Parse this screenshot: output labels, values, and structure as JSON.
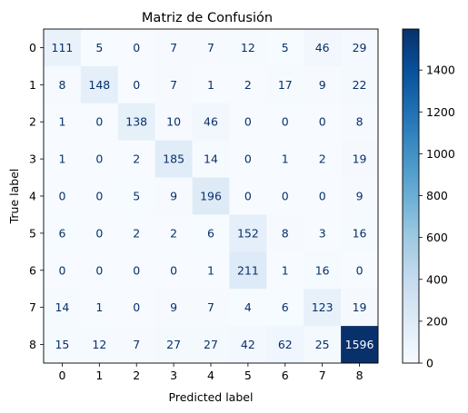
{
  "chart_data": {
    "type": "heatmap",
    "title": "Matriz de Confusión",
    "xlabel": "Predicted label",
    "ylabel": "True label",
    "x_ticks": [
      "0",
      "1",
      "2",
      "3",
      "4",
      "5",
      "6",
      "7",
      "8"
    ],
    "y_ticks": [
      "0",
      "1",
      "2",
      "3",
      "4",
      "5",
      "6",
      "7",
      "8"
    ],
    "matrix": [
      [
        111,
        5,
        0,
        7,
        7,
        12,
        5,
        46,
        29
      ],
      [
        8,
        148,
        0,
        7,
        1,
        2,
        17,
        9,
        22
      ],
      [
        1,
        0,
        138,
        10,
        46,
        0,
        0,
        0,
        8
      ],
      [
        1,
        0,
        2,
        185,
        14,
        0,
        1,
        2,
        19
      ],
      [
        0,
        0,
        5,
        9,
        196,
        0,
        0,
        0,
        9
      ],
      [
        6,
        0,
        2,
        2,
        6,
        152,
        8,
        3,
        16
      ],
      [
        0,
        0,
        0,
        0,
        1,
        211,
        1,
        16,
        0
      ],
      [
        14,
        1,
        0,
        9,
        7,
        4,
        6,
        123,
        19
      ],
      [
        15,
        12,
        7,
        27,
        27,
        42,
        62,
        25,
        1596
      ]
    ],
    "colorbar": {
      "colormap": "Blues",
      "range": [
        0,
        1596
      ],
      "ticks": [
        0,
        200,
        400,
        600,
        800,
        1000,
        1200,
        1400
      ]
    },
    "grid": false
  }
}
